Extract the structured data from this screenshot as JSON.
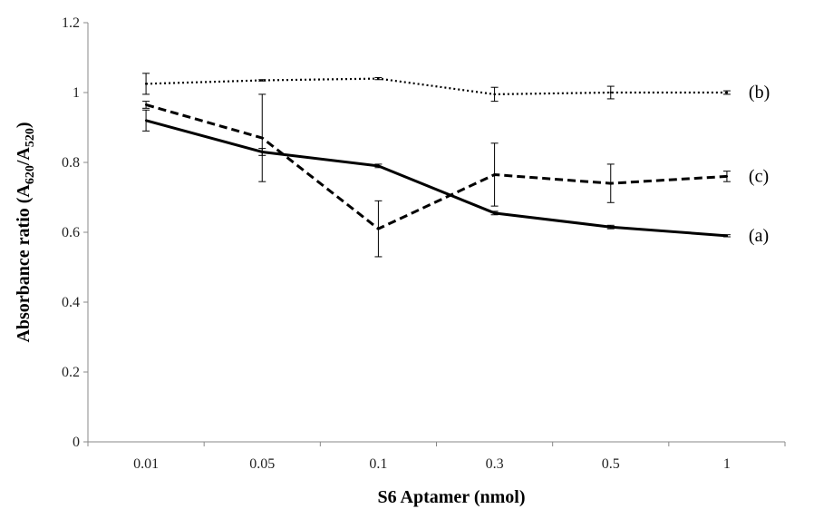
{
  "chart_data": {
    "type": "line",
    "title": "",
    "xlabel": "S6 Aptamer (nmol)",
    "ylabel": {
      "prefix": "Absorbance ratio (A",
      "sub1": "620",
      "mid": "/A",
      "sub2": "520",
      "suffix": ")"
    },
    "categories": [
      "0.01",
      "0.05",
      "0.1",
      "0.3",
      "0.5",
      "1"
    ],
    "ylim": [
      0,
      1.2
    ],
    "yticks": [
      "0",
      "0.2",
      "0.4",
      "0.6",
      "0.8",
      "1",
      "1.2"
    ],
    "grid": false,
    "legend": "inline-right",
    "series": [
      {
        "name": "(a)",
        "style": "solid",
        "values": [
          0.92,
          0.83,
          0.79,
          0.655,
          0.615,
          0.59
        ],
        "errors": [
          0.03,
          0.01,
          0.005,
          0.005,
          0.005,
          0.003
        ]
      },
      {
        "name": "(b)",
        "style": "dotted",
        "values": [
          1.025,
          1.035,
          1.04,
          0.995,
          1.0,
          1.0
        ],
        "errors": [
          0.03,
          0.002,
          0.003,
          0.02,
          0.018,
          0.005
        ]
      },
      {
        "name": "(c)",
        "style": "dashed",
        "values": [
          0.965,
          0.87,
          0.61,
          0.765,
          0.74,
          0.76
        ],
        "errors": [
          0.01,
          0.125,
          0.08,
          0.09,
          0.055,
          0.015
        ]
      }
    ],
    "colors": {
      "series": "#000000",
      "axis": "#888888",
      "text": "#222222"
    }
  }
}
